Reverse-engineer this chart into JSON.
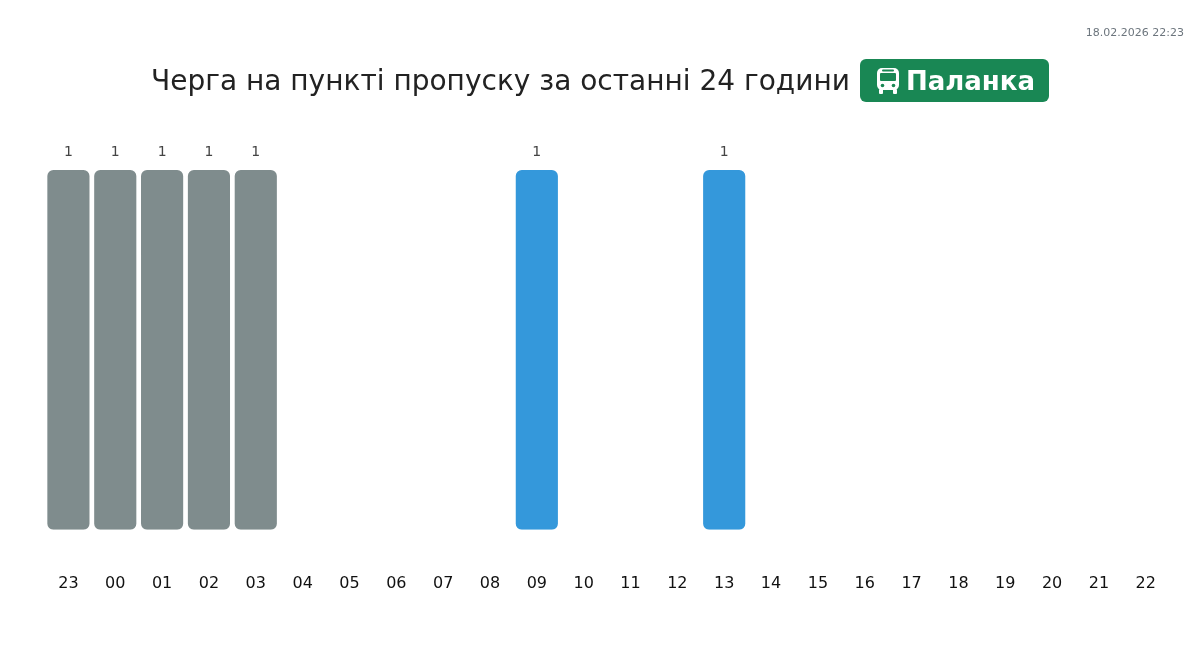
{
  "chart_data": {
    "type": "bar",
    "title": "Черга на пункті пропуску за останні 24 години",
    "subtitle": "Паланка",
    "annotations": [
      "18.02.2026 22:23"
    ],
    "categories": [
      "23",
      "00",
      "01",
      "02",
      "03",
      "04",
      "05",
      "06",
      "07",
      "08",
      "09",
      "10",
      "11",
      "12",
      "13",
      "14",
      "15",
      "16",
      "17",
      "18",
      "19",
      "20",
      "21",
      "22"
    ],
    "values": [
      1,
      1,
      1,
      1,
      1,
      null,
      null,
      null,
      null,
      null,
      1,
      null,
      null,
      null,
      1,
      null,
      null,
      null,
      null,
      null,
      null,
      null,
      null,
      null
    ],
    "colors": [
      "#7f8c8d",
      "#7f8c8d",
      "#7f8c8d",
      "#7f8c8d",
      "#7f8c8d",
      null,
      null,
      null,
      null,
      null,
      "#3498db",
      null,
      null,
      null,
      "#3498db",
      null,
      null,
      null,
      null,
      null,
      null,
      null,
      null,
      null
    ],
    "data_labels": true,
    "tick_labels": "x"
  }
}
